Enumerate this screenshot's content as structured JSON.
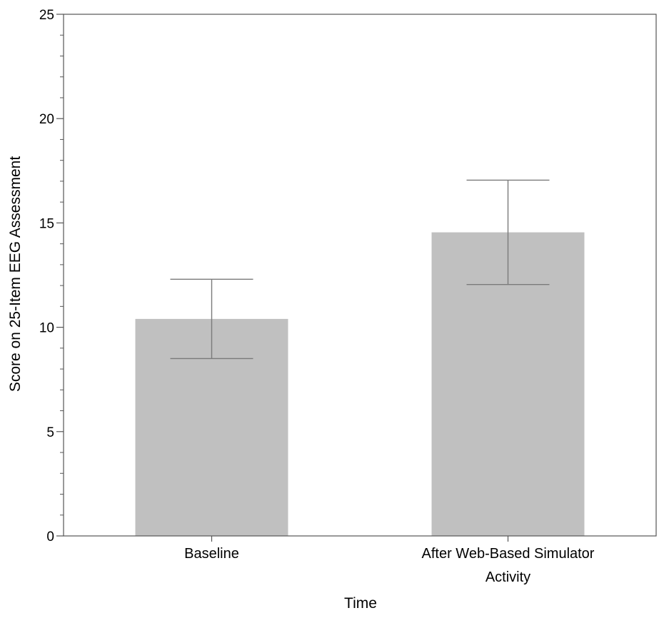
{
  "chart_data": {
    "type": "bar",
    "title": "",
    "xlabel": "Time",
    "ylabel": "Score on 25-Item EEG Assessment",
    "categories": [
      [
        "Baseline"
      ],
      [
        "After Web-Based Simulator",
        "Activity"
      ]
    ],
    "values": [
      10.4,
      14.55
    ],
    "error_low": [
      8.5,
      12.05
    ],
    "error_high": [
      12.3,
      17.05
    ],
    "ylim": [
      0,
      25
    ],
    "yticks": [
      0,
      5,
      10,
      15,
      20,
      25
    ],
    "yticks_minor_step": 1,
    "grid": false,
    "legend": "none",
    "colors": {
      "bar": "#c0c0c0",
      "error_bar": "#7a7a7a",
      "axis": "#555555",
      "text": "#000000"
    }
  }
}
